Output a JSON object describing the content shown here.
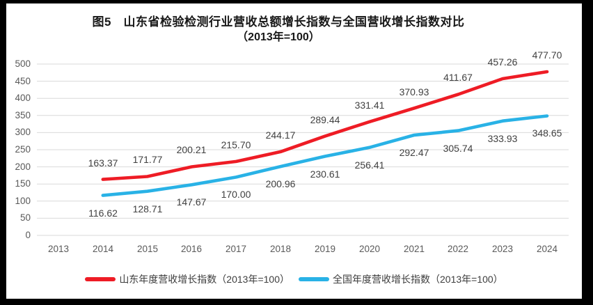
{
  "frame": {
    "border_color": "#000000",
    "canvas_color": "#ffffff"
  },
  "title": {
    "line1": "图5　山东省检验检测行业营收总额增长指数与全国营收增长指数对比",
    "line2": "（2013年=100）"
  },
  "chart_data": {
    "type": "line",
    "title": "图5 山东省检验检测行业营收总额增长指数与全国营收增长指数对比（2013年=100）",
    "xlabel": "",
    "ylabel": "",
    "categories": [
      "2013",
      "2014",
      "2015",
      "2016",
      "2017",
      "2018",
      "2019",
      "2020",
      "2021",
      "2022",
      "2023",
      "2024"
    ],
    "series": [
      {
        "name": "山东年度营收增长指数（2013年=100）",
        "color": "#ee1c25",
        "values": [
          null,
          163.37,
          171.77,
          200.21,
          215.7,
          244.17,
          289.44,
          331.41,
          370.93,
          411.67,
          457.26,
          477.7
        ]
      },
      {
        "name": "全国年度营收增长指数（2013年=100）",
        "color": "#29b2e6",
        "values": [
          null,
          116.62,
          128.71,
          147.67,
          170.0,
          200.96,
          230.61,
          256.41,
          292.47,
          305.74,
          333.93,
          348.65
        ]
      }
    ],
    "ylim": [
      0,
      500
    ],
    "ytick_interval": 50,
    "grid": true,
    "grid_color": "#d9d9d9",
    "axis_text_color": "#595959",
    "data_label_color": "#404040",
    "legend_position": "bottom"
  }
}
